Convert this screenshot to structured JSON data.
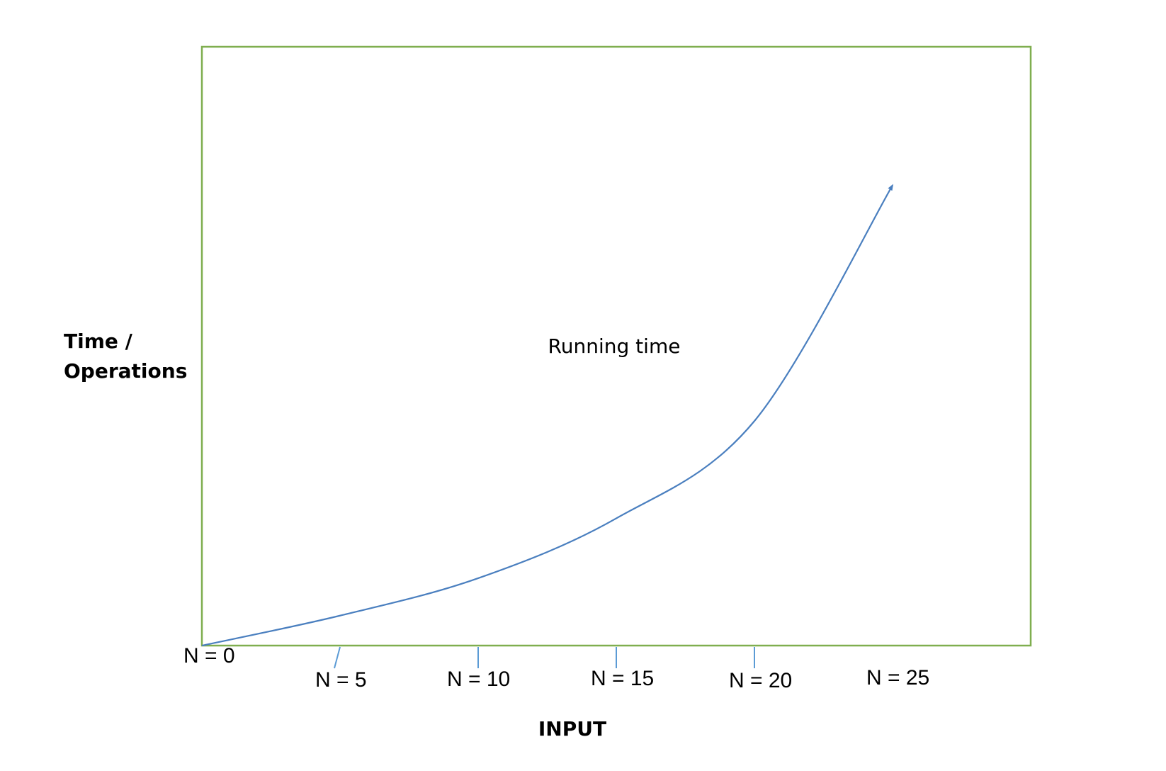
{
  "chart_data": {
    "type": "line",
    "title": "",
    "xlabel": "INPUT",
    "ylabel_lines": [
      "Time /",
      "Operations"
    ],
    "annotation": "Running time",
    "categories": [
      "N = 0",
      "N = 5",
      "N = 10",
      "N = 15",
      "N = 20",
      "N = 25"
    ],
    "x": [
      0,
      5,
      10,
      15,
      20,
      25
    ],
    "series": [
      {
        "values": [
          0,
          0.8,
          1.8,
          3.4,
          6.0,
          12.3
        ],
        "arrowhead": true
      }
    ],
    "xlim": [
      0,
      30
    ],
    "ylim": [
      0,
      16
    ],
    "grid": false,
    "colors": {
      "frame": "#7fae4f",
      "line": "#4a7fbf",
      "tick": "#5b9bd5"
    }
  }
}
